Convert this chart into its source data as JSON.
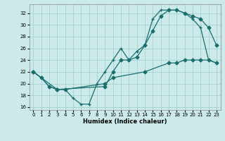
{
  "xlabel": "Humidex (Indice chaleur)",
  "background_color": "#cceaea",
  "grid_color": "#aad4d4",
  "line_color": "#1a6e6e",
  "xlim": [
    -0.5,
    23.5
  ],
  "ylim": [
    15.5,
    33.5
  ],
  "xticks": [
    0,
    1,
    2,
    3,
    4,
    5,
    6,
    7,
    8,
    9,
    10,
    11,
    12,
    13,
    14,
    15,
    16,
    17,
    18,
    19,
    20,
    21,
    22,
    23
  ],
  "yticks": [
    16,
    18,
    20,
    22,
    24,
    26,
    28,
    30,
    32
  ],
  "line1_x": [
    0,
    1,
    2,
    3,
    4,
    5,
    6,
    7,
    8,
    9,
    10,
    11,
    12,
    13,
    14,
    15,
    16,
    17,
    18,
    19,
    20,
    21,
    22,
    23
  ],
  "line1_y": [
    22,
    21,
    19.5,
    19,
    19,
    17.5,
    16.5,
    16.5,
    20,
    22,
    24,
    26,
    24,
    25.5,
    26.5,
    31,
    32.5,
    32.5,
    32.5,
    32,
    31,
    29.5,
    24,
    23.5
  ],
  "line1_markers_x": [
    0,
    1,
    2,
    3,
    4,
    5,
    6,
    7,
    8,
    9,
    13,
    14,
    15,
    16,
    17,
    18,
    19,
    20,
    21,
    22,
    23
  ],
  "line1_markers_y": [
    22,
    21,
    19.5,
    19,
    19,
    17.5,
    16.5,
    16.5,
    20,
    22,
    25.5,
    26.5,
    31,
    32.5,
    32.5,
    32.5,
    32,
    31,
    29.5,
    24,
    23.5
  ],
  "line2_x": [
    0,
    1,
    2,
    3,
    9,
    10,
    11,
    12,
    13,
    14,
    15,
    16,
    17,
    18,
    19,
    20,
    21,
    22,
    23
  ],
  "line2_y": [
    22,
    21,
    19.5,
    19,
    19.5,
    22,
    24,
    24,
    24.5,
    26.5,
    29,
    31.5,
    32.5,
    32.5,
    32,
    31.5,
    31,
    29.5,
    26.5
  ],
  "line3_x": [
    0,
    3,
    4,
    9,
    10,
    14,
    17,
    18,
    19,
    20,
    21,
    22,
    23
  ],
  "line3_y": [
    22,
    19,
    19,
    20,
    21,
    22,
    23.5,
    23.5,
    24,
    24,
    24,
    24,
    23.5
  ]
}
